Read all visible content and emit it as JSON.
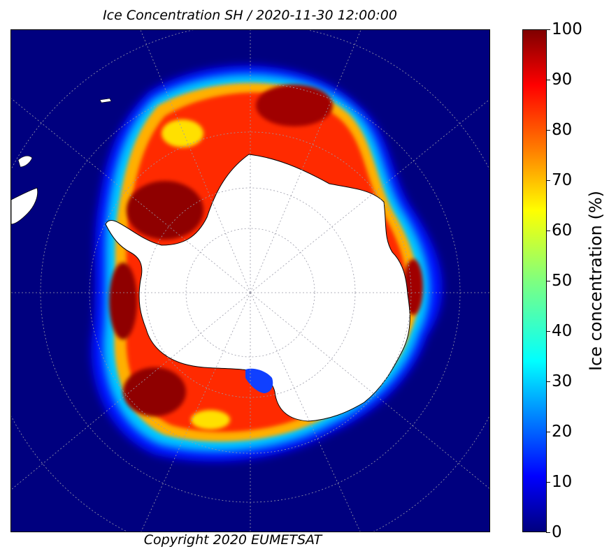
{
  "map": {
    "title": "Ice Concentration SH / 2020-11-30 12:00:00",
    "copyright": "Copyright 2020 EUMETSAT",
    "projection": "south polar stereographic",
    "region": "Southern Hemisphere",
    "variable": "Ice concentration"
  },
  "colorbar": {
    "label": "Ice concentration (%)",
    "min": 0,
    "max": 100,
    "ticks": [
      "100",
      "90",
      "80",
      "70",
      "60",
      "50",
      "40",
      "30",
      "20",
      "10",
      "0"
    ],
    "colormap": "jet",
    "stops": [
      "#00007f",
      "#0000ff",
      "#007fff",
      "#00ffff",
      "#7fff7f",
      "#ffff00",
      "#ff7f00",
      "#ff0000",
      "#7f0000"
    ]
  },
  "colors": {
    "open_ocean": "#00007f",
    "land": "#ffffff",
    "graticule": "#9a9aa8"
  }
}
